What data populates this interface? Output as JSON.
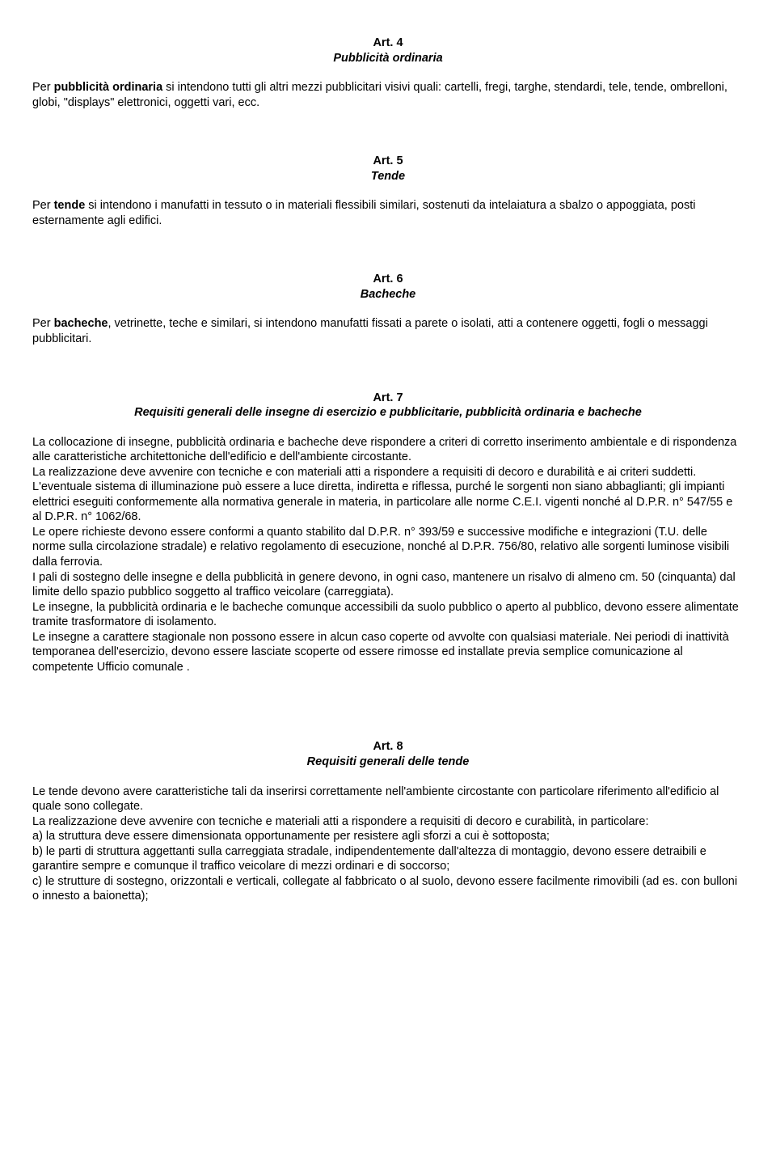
{
  "articles": [
    {
      "number": "Art. 4",
      "title": "Pubblicità ordinaria",
      "paragraphs": [
        "Per <b>pubblicità ordinaria</b> si intendono tutti gli altri mezzi pubblicitari visivi quali: cartelli, fregi, targhe, stendardi, tele, tende, ombrelloni, globi, \"displays\" elettronici, oggetti vari, ecc."
      ]
    },
    {
      "number": "Art. 5",
      "title": "Tende",
      "paragraphs": [
        "Per <b>tende</b> si intendono i manufatti in tessuto o in materiali flessibili similari, sostenuti da intelaiatura a sbalzo o appoggiata, posti esternamente agli edifici."
      ]
    },
    {
      "number": "Art. 6",
      "title": "Bacheche",
      "paragraphs": [
        "Per <b>bacheche</b>, vetrinette, teche e similari, si intendono manufatti fissati a parete o isolati, atti a contenere oggetti, fogli o messaggi pubblicitari."
      ]
    },
    {
      "number": "Art. 7",
      "title": "Requisiti generali delle insegne di esercizio e pubblicitarie, pubblicità ordinaria e bacheche",
      "paragraphs": [
        "La collocazione di insegne, pubblicità ordinaria e bacheche deve rispondere a criteri di corretto inserimento ambientale e di rispondenza alle caratteristiche architettoniche dell'edificio e dell'ambiente circostante.",
        "La realizzazione deve avvenire con tecniche e con materiali atti a rispondere a requisiti di decoro e durabilità e ai criteri suddetti.",
        "L'eventuale sistema di illuminazione può essere a luce diretta, indiretta e riflessa, purché le sorgenti non siano abbaglianti; gli impianti elettrici eseguiti conformemente alla normativa generale in materia, in particolare alle norme C.E.I. vigenti nonché al D.P.R. n° 547/55 e al D.P.R. n° 1062/68.",
        "Le opere richieste devono essere conformi a quanto stabilito dal D.P.R. n° 393/59 e successive modifiche e integrazioni (T.U. delle norme sulla circolazione stradale) e relativo regolamento di esecuzione, nonché al D.P.R. 756/80, relativo alle sorgenti luminose visibili dalla ferrovia.",
        "I pali di sostegno delle insegne e della pubblicità in genere devono, in ogni caso, mantenere un risalvo di almeno cm. 50 (cinquanta) dal limite dello spazio pubblico soggetto al traffico veicolare (carreggiata).",
        "Le insegne, la pubblicità ordinaria e le bacheche comunque accessibili da suolo pubblico o aperto al pubblico, devono essere alimentate tramite trasformatore di isolamento.",
        "Le insegne a carattere stagionale non possono essere in alcun caso coperte od avvolte con qualsiasi materiale. Nei periodi di inattività temporanea dell'esercizio, devono essere lasciate scoperte od essere rimosse ed installate previa semplice comunicazione al competente Ufficio comunale ."
      ]
    },
    {
      "number": "Art. 8",
      "title": "Requisiti generali delle tende",
      "paragraphs": [
        "Le tende devono avere caratteristiche tali da inserirsi correttamente nell'ambiente circostante con particolare riferimento all'edificio al quale sono collegate.",
        "La realizzazione deve avvenire con tecniche e materiali atti a rispondere a requisiti di decoro e curabilità, in particolare:",
        "a) la struttura deve essere dimensionata opportunamente per resistere agli sforzi a cui è sottoposta;",
        "b) le parti di struttura aggettanti sulla carreggiata stradale, indipendentemente dall'altezza di montaggio, devono essere detraibili e garantire sempre e comunque il traffico veicolare di mezzi ordinari e di soccorso;",
        "c) le strutture di sostegno, orizzontali e verticali, collegate al fabbricato o al suolo, devono essere facilmente rimovibili (ad es. con bulloni o innesto a baionetta);"
      ]
    }
  ]
}
